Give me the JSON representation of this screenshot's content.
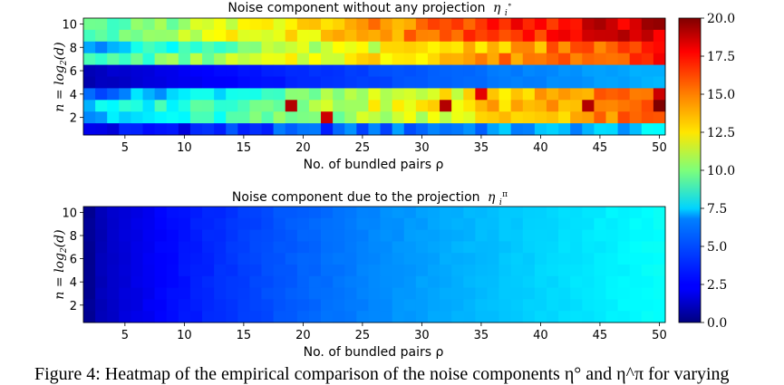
{
  "figure_caption": "Figure 4: Heatmap of the empirical comparison of the noise components η° and η^π for varying",
  "colorbar": {
    "min": 0.0,
    "max": 20.0,
    "colormap": "jet",
    "ticks": [
      "0.0",
      "2.5",
      "5.0",
      "7.5",
      "10.0",
      "12.5",
      "15.0",
      "17.5",
      "20.0"
    ]
  },
  "chart_data": [
    {
      "type": "heatmap",
      "title": "Noise component without any projection",
      "title_symbol": "η",
      "title_sub": "i",
      "title_sup": "∘",
      "xlabel": "No. of bundled pairs ρ",
      "ylabel_prefix": "n = log",
      "ylabel_sub": "2",
      "ylabel_suffix": "(d)",
      "x_range": [
        2,
        50
      ],
      "y_range": [
        1,
        10
      ],
      "xticks": [
        5,
        10,
        15,
        20,
        25,
        30,
        35,
        40,
        45,
        50
      ],
      "yticks": [
        2,
        4,
        6,
        8,
        10
      ],
      "rows": [
        {
          "n": 10,
          "start": 8.5,
          "end": 19.0
        },
        {
          "n": 9,
          "start": 9.0,
          "end": 18.5
        },
        {
          "n": 8,
          "start": 6.5,
          "end": 16.5
        },
        {
          "n": 7,
          "start": 8.0,
          "end": 17.0
        },
        {
          "n": 6,
          "start": 1.2,
          "end": 6.0
        },
        {
          "n": 5,
          "start": 1.0,
          "end": 6.0
        },
        {
          "n": 4,
          "start": 4.5,
          "end": 16.0
        },
        {
          "n": 3,
          "start": 6.5,
          "end": 16.0
        },
        {
          "n": 2,
          "start": 5.5,
          "end": 15.5
        },
        {
          "n": 1,
          "start": 2.0,
          "end": 6.5
        }
      ],
      "highlights": [
        {
          "n": 3,
          "rho": 19,
          "value": 19.0
        },
        {
          "n": 2,
          "rho": 22,
          "value": 18.5
        },
        {
          "n": 3,
          "rho": 32,
          "value": 19.0
        },
        {
          "n": 4,
          "rho": 35,
          "value": 18.0
        },
        {
          "n": 3,
          "rho": 44,
          "value": 19.0
        },
        {
          "n": 3,
          "rho": 50,
          "value": 20.0
        },
        {
          "n": 4,
          "rho": 50,
          "value": 18.5
        },
        {
          "n": 8,
          "rho": 3,
          "value": 5.0
        }
      ]
    },
    {
      "type": "heatmap",
      "title": "Noise component due to the projection",
      "title_symbol": "η",
      "title_sub": "i",
      "title_sup": "π",
      "xlabel": "No. of bundled pairs ρ",
      "ylabel_prefix": "n = log",
      "ylabel_sub": "2",
      "ylabel_suffix": "(d)",
      "x_range": [
        2,
        50
      ],
      "y_range": [
        1,
        10
      ],
      "xticks": [
        5,
        10,
        15,
        20,
        25,
        30,
        35,
        40,
        45,
        50
      ],
      "yticks": [
        2,
        4,
        6,
        8,
        10
      ],
      "value_min_at_rho2": 0.4,
      "value_max_at_rho50": 7.6
    }
  ]
}
